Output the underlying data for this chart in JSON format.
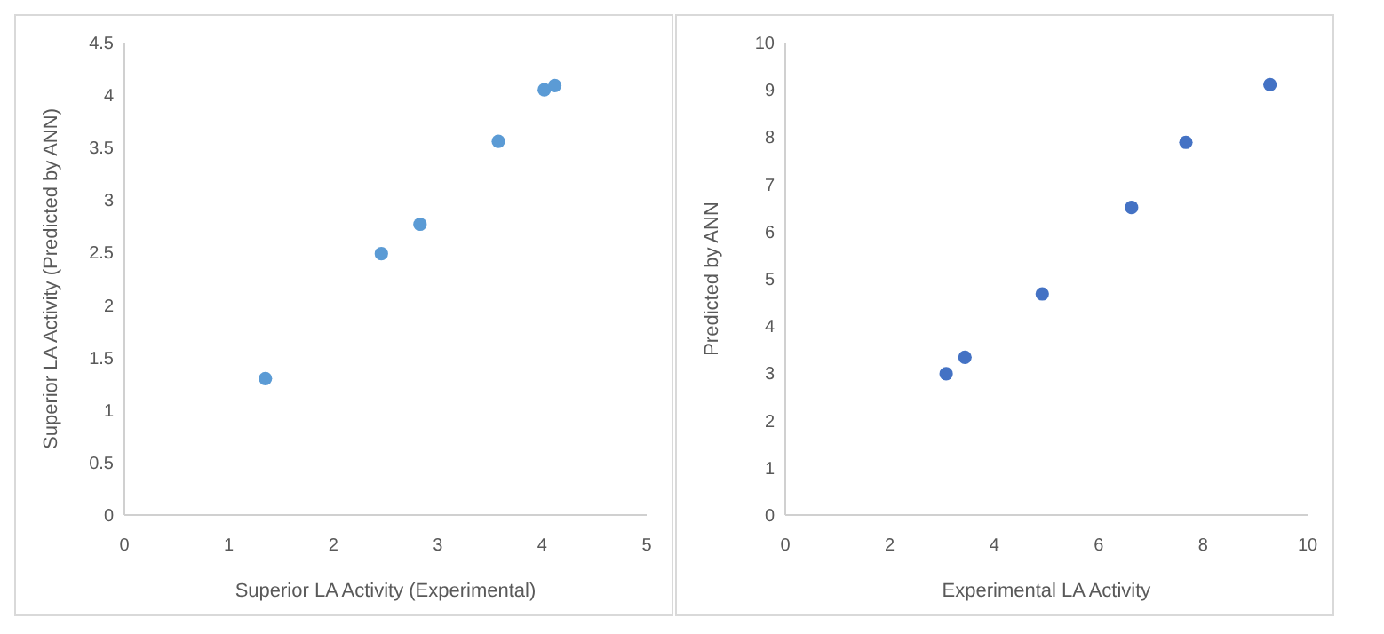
{
  "chart_data": [
    {
      "type": "scatter",
      "xlabel": "Superior LA Activity (Experimental)",
      "ylabel": "Superior LA Activity (Predicted by ANN)",
      "x": [
        1.35,
        2.46,
        2.83,
        3.58,
        4.02,
        4.12
      ],
      "series": [
        {
          "color": "#5b9bd5",
          "values": [
            1.3,
            2.49,
            2.77,
            3.56,
            4.05,
            4.09
          ]
        }
      ],
      "xlim": [
        0,
        5
      ],
      "xticks": [
        0,
        1,
        2,
        3,
        4,
        5
      ],
      "ylim": [
        0,
        4.5
      ],
      "yticks": [
        0,
        0.5,
        1,
        1.5,
        2,
        2.5,
        3,
        3.5,
        4,
        4.5
      ],
      "marker": "circle"
    },
    {
      "type": "scatter",
      "xlabel": "Experimental LA Activity",
      "ylabel": "Predicted by ANN",
      "x": [
        3.08,
        3.44,
        4.92,
        6.63,
        7.67,
        9.28
      ],
      "series": [
        {
          "color": "#4472c4",
          "values": [
            2.99,
            3.34,
            4.68,
            6.51,
            7.89,
            9.11
          ]
        }
      ],
      "xlim": [
        0,
        10
      ],
      "xticks": [
        0,
        2,
        4,
        6,
        8,
        10
      ],
      "ylim": [
        0,
        10
      ],
      "yticks": [
        0,
        1,
        2,
        3,
        4,
        5,
        6,
        7,
        8,
        9,
        10
      ],
      "marker": "circle"
    }
  ]
}
